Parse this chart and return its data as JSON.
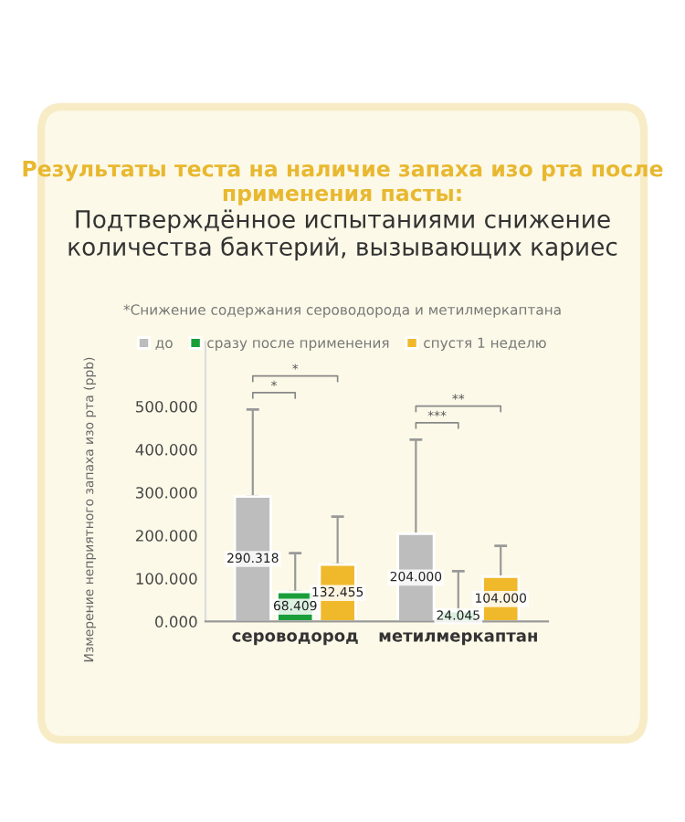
{
  "chart_data": {
    "type": "bar",
    "title": "Результаты теста на наличие запаха изо рта после применения пасты:",
    "subtitle": "Подтверждённое испытаниями снижение количества бактерий, вызывающих кариес",
    "ylabel": "Измерение неприятного запаха изо рта (ppb)",
    "categories": [
      "сероводород",
      "метилмеркаптан"
    ],
    "series": [
      {
        "name": "до",
        "color": "#bdbdbd",
        "values": [
          290.318,
          204.0
        ],
        "errors": [
          [
            290.318,
            493
          ],
          [
            204.0,
            423
          ]
        ],
        "value_labels": [
          "290.318",
          "204.000"
        ]
      },
      {
        "name": "сразу после применения",
        "color": "#1a9e3a",
        "values": [
          68.409,
          24.045
        ],
        "errors": [
          [
            68.409,
            159
          ],
          [
            24.045,
            117
          ]
        ],
        "value_labels": [
          "68.409",
          "24.045"
        ]
      },
      {
        "name": "спустя 1 неделю",
        "color": "#f0b92c",
        "values": [
          132.455,
          104.0
        ],
        "errors": [
          [
            132.455,
            244
          ],
          [
            104.0,
            176
          ]
        ],
        "value_labels": [
          "132.455",
          "104.000"
        ]
      }
    ],
    "ylim": [
      0,
      650
    ],
    "yticks": [
      {
        "value": 0,
        "label": "0.000"
      },
      {
        "value": 100,
        "label": "100.000"
      },
      {
        "value": 200,
        "label": "200.000"
      },
      {
        "value": 300,
        "label": "300.000"
      },
      {
        "value": 400,
        "label": "400.000"
      },
      {
        "value": 500,
        "label": "500.000"
      }
    ],
    "annotations": [
      "*Снижение содержания сероводорода и метилмеркаптана",
      "*",
      "*",
      "***",
      "**"
    ],
    "grid": false,
    "legend": "top"
  }
}
